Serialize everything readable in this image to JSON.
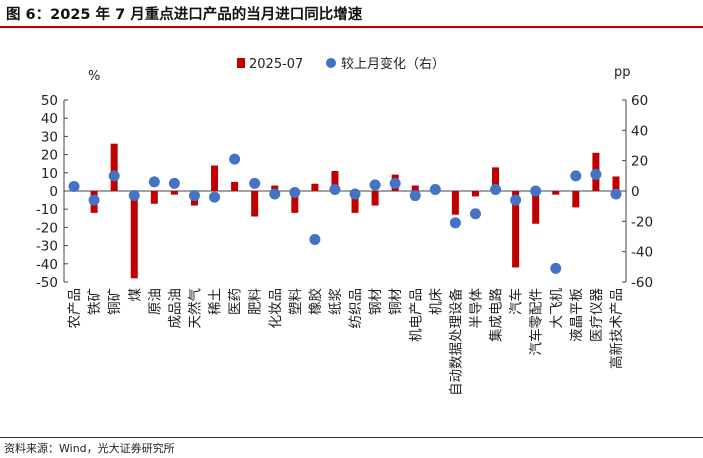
{
  "title": "图 6：2025 年 7 月重点进口产品的当月进口同比增速",
  "source": "资料来源：Wind，光大证券研究所",
  "colors": {
    "bar": "#c00000",
    "dot": "#4472c4",
    "rule": "#c00000"
  },
  "chart_data": {
    "type": "bar",
    "categories": [
      "农产品",
      "铁矿",
      "铜矿",
      "煤",
      "原油",
      "成品油",
      "天然气",
      "稀土",
      "医药",
      "肥料",
      "化妆品",
      "塑料",
      "橡胶",
      "纸浆",
      "纺织品",
      "钢材",
      "铜材",
      "机电产品",
      "机床",
      "自动数据处理设备",
      "半导体",
      "集成电路",
      "汽车",
      "汽车零配件",
      "大飞机",
      "液晶平板",
      "医疗仪器",
      "高新技术产品"
    ],
    "series": [
      {
        "name": "2025-07",
        "type": "bar",
        "axis": "left",
        "values": [
          0,
          -12,
          26,
          -48,
          -7,
          -2,
          -8,
          14,
          5,
          -14,
          3,
          -12,
          4,
          11,
          -12,
          -8,
          9,
          3,
          3,
          -13,
          -3,
          13,
          -42,
          -18,
          -2,
          -9,
          21,
          8
        ]
      },
      {
        "name": "较上月变化（右）",
        "type": "scatter",
        "axis": "right",
        "values": [
          3,
          -6,
          10,
          -3,
          6,
          5,
          -3,
          -4,
          21,
          5,
          -2,
          -1,
          -32,
          1,
          -2,
          4,
          5,
          -3,
          1,
          -21,
          -15,
          1,
          -6,
          0,
          -51,
          10,
          11,
          -2
        ]
      }
    ],
    "y_left": {
      "unit": "%",
      "ylim": [
        -50,
        50
      ],
      "ticks": [
        50,
        40,
        30,
        20,
        10,
        0,
        -10,
        -20,
        -30,
        -40,
        -50
      ]
    },
    "y_right": {
      "unit": "pp",
      "ylim": [
        -60,
        60
      ],
      "ticks": [
        60,
        40,
        20,
        0,
        -20,
        -40,
        -60
      ]
    },
    "legend": {
      "placement": "top-center"
    },
    "grid": false
  }
}
